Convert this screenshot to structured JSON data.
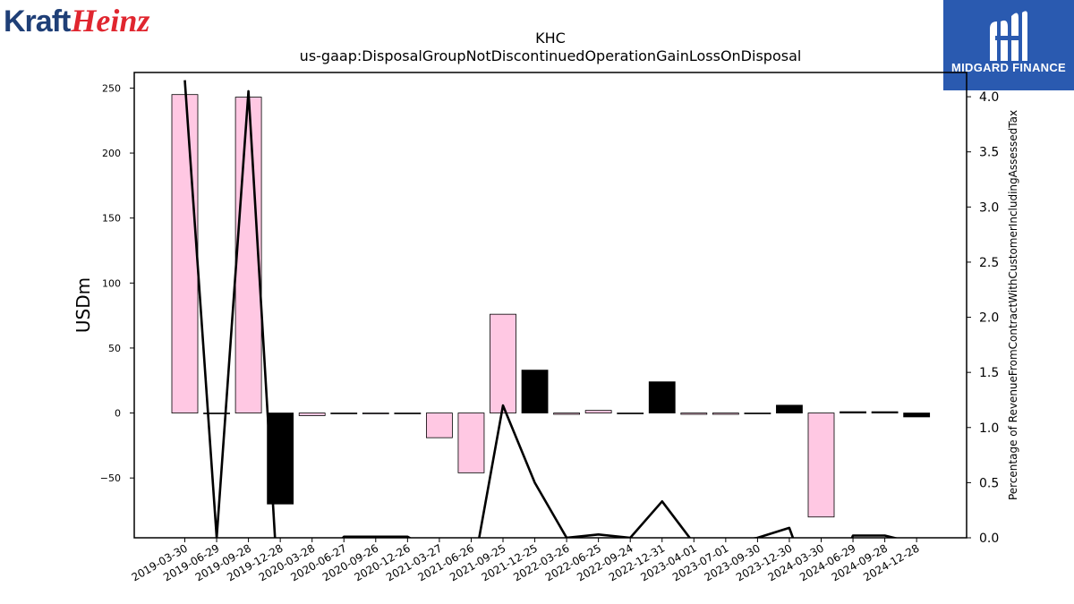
{
  "logos": {
    "left_part1": "Kraft",
    "left_part2": "Heinz",
    "right_brand": "MIDGARD FINANCE"
  },
  "chart_data": {
    "type": "bar",
    "title": "KHC",
    "subtitle": "us-gaap:DisposalGroupNotDiscontinuedOperationGainLossOnDisposal",
    "ylabel": "USDm",
    "y2label": "Percentage of RevenueFromContractWithCustomerIncludingAssessedTax",
    "ylim": [
      -96,
      262
    ],
    "y2lim": [
      0,
      4.22
    ],
    "yticks": [
      -50,
      0,
      50,
      100,
      150,
      200,
      250
    ],
    "y2ticks": [
      "0.0",
      "0.5",
      "1.0",
      "1.5",
      "2.0",
      "2.5",
      "3.0",
      "3.5",
      "4.0"
    ],
    "categories": [
      "2019-03-30",
      "2019-06-29",
      "2019-09-28",
      "2019-12-28",
      "2020-03-28",
      "2020-06-27",
      "2020-09-26",
      "2020-12-26",
      "2021-03-27",
      "2021-06-26",
      "2021-09-25",
      "2021-12-25",
      "2022-03-26",
      "2022-06-25",
      "2022-09-24",
      "2022-12-31",
      "2023-04-01",
      "2023-07-01",
      "2023-09-30",
      "2023-12-30",
      "2024-03-30",
      "2024-06-29",
      "2024-09-28",
      "2024-12-28"
    ],
    "series": [
      {
        "kind": "bar",
        "values": [
          245,
          0,
          243,
          -70,
          -2,
          0,
          0,
          0,
          -19,
          -46,
          76,
          33,
          -1,
          2,
          0,
          24,
          -1,
          -1,
          0,
          6,
          -80,
          1,
          1,
          -3
        ],
        "colors": [
          "#ffc8e3",
          "#000000",
          "#ffc8e3",
          "#000000",
          "#ffc8e3",
          "#000000",
          "#ffc8e3",
          "#000000",
          "#ffc8e3",
          "#ffc8e3",
          "#ffc8e3",
          "#000000",
          "#ffc8e3",
          "#ffc8e3",
          "#000000",
          "#000000",
          "#ffc8e3",
          "#ffc8e3",
          "#000000",
          "#000000",
          "#ffc8e3",
          "#000000",
          "#000000",
          "#000000"
        ]
      },
      {
        "kind": "line",
        "axis": "right",
        "values": [
          4.15,
          0.0,
          4.05,
          -0.8,
          -0.3,
          0.01,
          0.01,
          0.01,
          -0.15,
          -0.4,
          1.2,
          0.5,
          0.0,
          0.03,
          0.0,
          0.33,
          -0.05,
          -0.05,
          0.0,
          0.09,
          -0.7,
          0.02,
          0.02,
          -0.05
        ],
        "color": "#000000"
      }
    ]
  }
}
